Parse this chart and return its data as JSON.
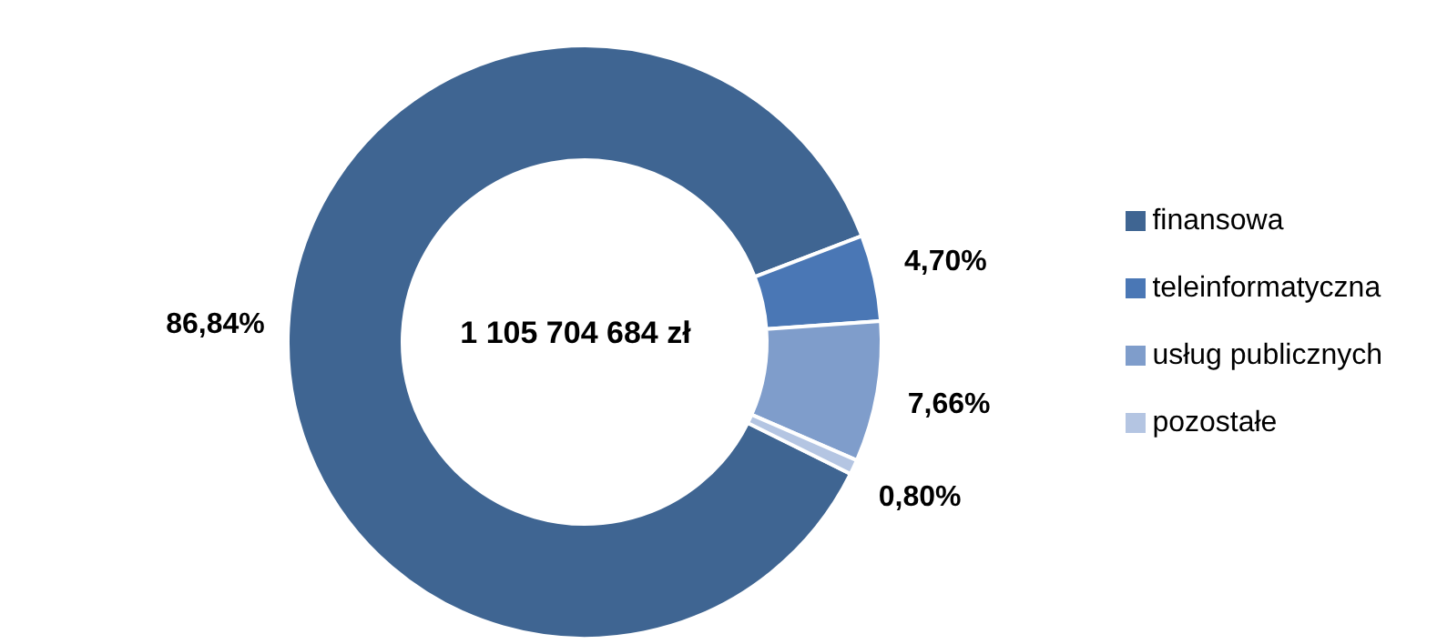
{
  "chart_data": {
    "type": "donut",
    "categories": [
      "finansowa",
      "teleinformatyczna",
      "usług publicznych",
      "pozostałe"
    ],
    "values": [
      86.84,
      4.7,
      7.66,
      0.8
    ],
    "value_labels": [
      "86,84%",
      "4,70%",
      "7,66%",
      "0,80%"
    ],
    "colors": [
      "#3f6592",
      "#4a77b5",
      "#7f9dcb",
      "#b4c5e2"
    ],
    "annotations": [
      "1 105 704 684 zł"
    ],
    "legend": "right"
  }
}
